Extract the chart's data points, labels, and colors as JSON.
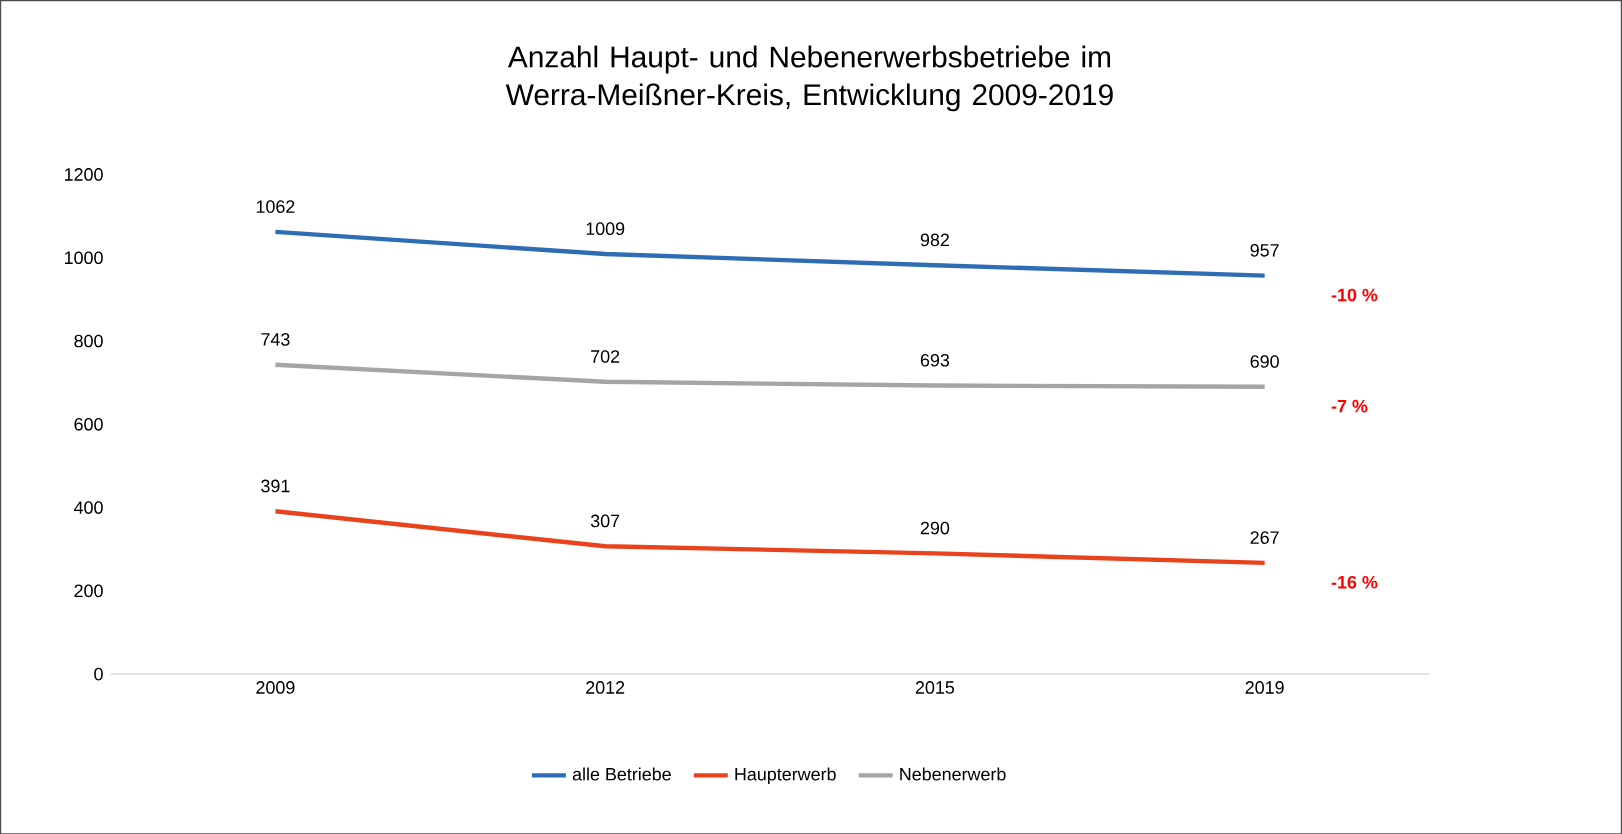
{
  "chart_data": {
    "type": "line",
    "title": "Anzahl Haupt- und Nebenerwerbsbetriebe im Werra-Meißner-Kreis, Entwicklung 2009-2019",
    "categories": [
      "2009",
      "2012",
      "2015",
      "2019"
    ],
    "series": [
      {
        "name": "alle Betriebe",
        "color": "#2e6db4",
        "values": [
          1062,
          1009,
          982,
          957
        ]
      },
      {
        "name": "Haupterwerb",
        "color": "#e8431c",
        "values": [
          391,
          307,
          290,
          267
        ]
      },
      {
        "name": "Nebenerwerb",
        "color": "#a5a5a5",
        "values": [
          743,
          702,
          693,
          690
        ]
      }
    ],
    "ylim": [
      0,
      1200
    ],
    "yticks": [
      0,
      200,
      400,
      600,
      800,
      1000,
      1200
    ],
    "data_labels": true,
    "legend": "bottom",
    "marker": "none",
    "line_style": "solid",
    "annotations": [
      "-10 %",
      "-16 %",
      "-7 %"
    ]
  }
}
